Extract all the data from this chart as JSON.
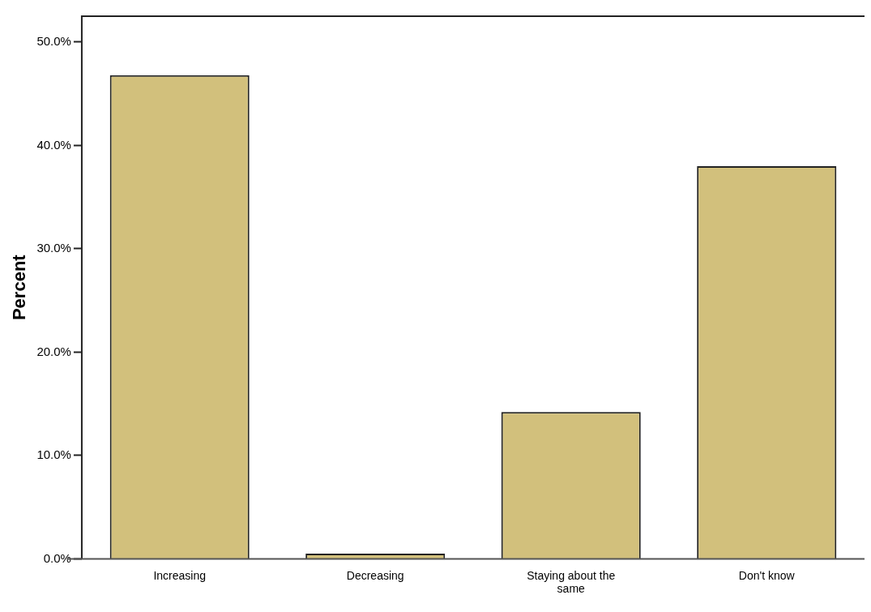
{
  "chart_data": {
    "type": "bar",
    "ylabel": "Percent",
    "categories": [
      "Increasing",
      "Decreasing",
      "Staying about the same",
      "Don't know"
    ],
    "values": [
      46.8,
      0.5,
      14.2,
      38.0
    ],
    "color": "#d2c07c",
    "ylim": [
      0,
      52.5
    ],
    "yticks": [
      {
        "value": 0,
        "label": "0.0%"
      },
      {
        "value": 10,
        "label": "10.0%"
      },
      {
        "value": 20,
        "label": "20.0%"
      },
      {
        "value": 30,
        "label": "30.0%"
      },
      {
        "value": 40,
        "label": "40.0%"
      },
      {
        "value": 50,
        "label": "50.0%"
      }
    ],
    "grid": false,
    "legend": false
  }
}
